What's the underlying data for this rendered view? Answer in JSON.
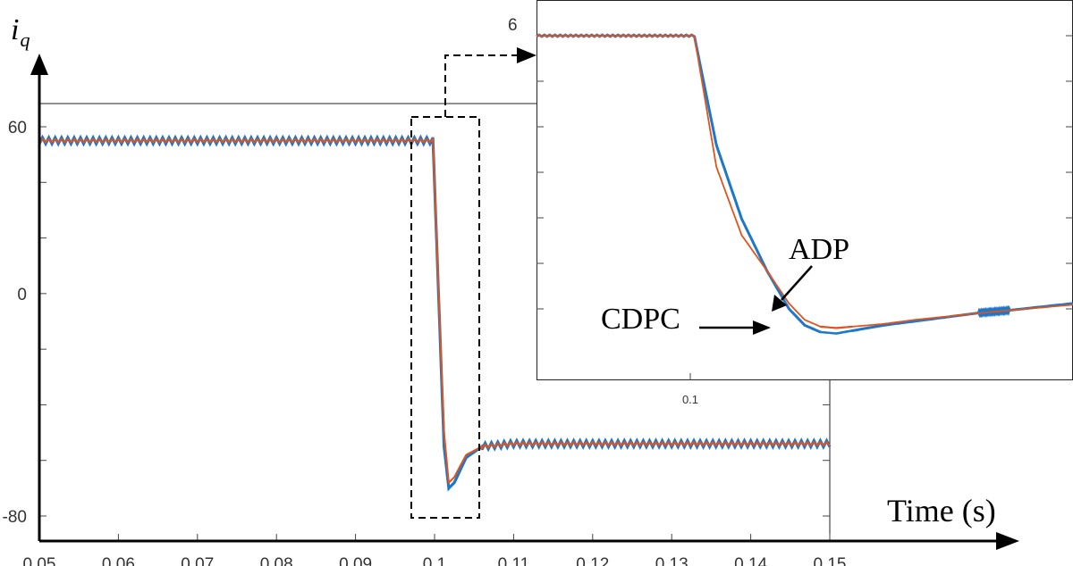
{
  "chart_data": [
    {
      "type": "line",
      "title": "",
      "ylabel": "i_q",
      "ylabel_main": "i",
      "ylabel_sub": "q",
      "xlabel": "Time (s)",
      "xlim": [
        0.05,
        0.15
      ],
      "ylim": [
        -80,
        60
      ],
      "x_ticks": [
        "0.05",
        "0.06",
        "0.07",
        "0.08",
        "0.09",
        "0.1",
        "0.11",
        "0.12",
        "0.13",
        "0.14",
        "0.15"
      ],
      "y_ticks": [
        "60",
        "0",
        "-80"
      ],
      "colors": {
        "CDPC": "#1f77c8",
        "ADP": "#e0531b"
      },
      "series": [
        {
          "name": "CDPC",
          "x": [
            0.05,
            0.09,
            0.0998,
            0.1005,
            0.1012,
            0.1018,
            0.1025,
            0.104,
            0.106,
            0.11,
            0.13,
            0.15
          ],
          "y": [
            55,
            55,
            55,
            0,
            -55,
            -70,
            -68,
            -59,
            -55,
            -54,
            -54,
            -54
          ]
        },
        {
          "name": "ADP",
          "x": [
            0.05,
            0.09,
            0.0998,
            0.1005,
            0.1012,
            0.1018,
            0.1025,
            0.104,
            0.106,
            0.11,
            0.13,
            0.15
          ],
          "y": [
            55,
            55,
            55,
            2,
            -50,
            -68,
            -66,
            -58,
            -55,
            -54,
            -54,
            -54
          ]
        }
      ]
    },
    {
      "type": "line",
      "title": "",
      "role": "zoom-inset",
      "xlim": [
        0.095,
        0.112
      ],
      "x_ticks": [
        "0.1"
      ],
      "y_ticks": [
        "6"
      ],
      "annotations": [
        "ADP",
        "CDPC"
      ],
      "series": [
        {
          "name": "CDPC",
          "x": [
            0.095,
            0.1,
            0.1007,
            0.1015,
            0.1023,
            0.103,
            0.1035,
            0.104,
            0.1045,
            0.105,
            0.106,
            0.107,
            0.108,
            0.109,
            0.11,
            0.112
          ],
          "y": [
            1.0,
            1.0,
            0.6,
            0.33,
            0.14,
            0.0,
            -0.06,
            -0.085,
            -0.09,
            -0.08,
            -0.06,
            -0.045,
            -0.03,
            -0.015,
            -0.005,
            0.02
          ]
        },
        {
          "name": "ADP",
          "x": [
            0.095,
            0.1,
            0.1007,
            0.1015,
            0.1023,
            0.103,
            0.1035,
            0.104,
            0.1045,
            0.105,
            0.106,
            0.107,
            0.108,
            0.109,
            0.11,
            0.112
          ],
          "y": [
            1.0,
            1.0,
            0.52,
            0.27,
            0.14,
            0.02,
            -0.04,
            -0.065,
            -0.07,
            -0.065,
            -0.055,
            -0.04,
            -0.028,
            -0.016,
            -0.005,
            0.015
          ]
        }
      ]
    }
  ]
}
